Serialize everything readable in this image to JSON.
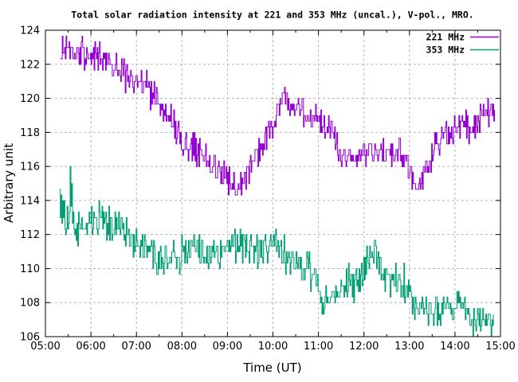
{
  "title": "Total solar radiation intensity at 221 and 353 MHz (uncal.), V-pol., MRO.",
  "axes": {
    "x": {
      "label": "Time (UT)",
      "min_hour": 5,
      "max_hour": 15,
      "major_tick_hours": 1,
      "minor_tick_hours": 0.5,
      "tick_labels": [
        "05:00",
        "06:00",
        "07:00",
        "08:00",
        "09:00",
        "10:00",
        "11:00",
        "12:00",
        "13:00",
        "14:00",
        "15:00"
      ]
    },
    "y": {
      "label": "Arbitrary unit",
      "min": 106,
      "max": 124,
      "tick_step": 2,
      "tick_labels": [
        "106",
        "108",
        "110",
        "112",
        "114",
        "116",
        "118",
        "120",
        "122",
        "124"
      ]
    }
  },
  "legend": {
    "position": "top-right-inside",
    "entries": [
      {
        "label": "221 MHz",
        "color": "#9400d3"
      },
      {
        "label": "353 MHz",
        "color": "#009e73"
      }
    ]
  },
  "colors": {
    "background": "#ffffff",
    "frame": "#000000",
    "grid": "#b5b5b5",
    "series_221": "#9400d3",
    "series_353": "#009e73"
  },
  "chart_data": {
    "type": "line",
    "style": "steps",
    "title": "Total solar radiation intensity at 221 and 353 MHz (uncal.), V-pol., MRO.",
    "xlabel": "Time (UT)",
    "ylabel": "Arbitrary unit",
    "xlim_hours": [
      5,
      15
    ],
    "ylim": [
      106,
      124
    ],
    "grid": true,
    "legend_position": "top-right",
    "sample_minutes": 1,
    "quantize_step": 0.3333,
    "series": [
      {
        "name": "221 MHz",
        "color": "#9400d3",
        "start_hour": 5.32,
        "end_hour": 14.87,
        "noise_amplitude": 1.1,
        "seed": 20210221,
        "trend": [
          [
            5.32,
            123.0
          ],
          [
            5.55,
            122.8
          ],
          [
            5.85,
            122.6
          ],
          [
            6.1,
            122.4
          ],
          [
            6.35,
            122.2
          ],
          [
            6.6,
            121.7
          ],
          [
            6.8,
            121.2
          ],
          [
            7.0,
            121.2
          ],
          [
            7.15,
            120.8
          ],
          [
            7.35,
            120.2
          ],
          [
            7.55,
            119.5
          ],
          [
            7.75,
            118.8
          ],
          [
            7.95,
            117.6
          ],
          [
            8.15,
            117.2
          ],
          [
            8.35,
            116.8
          ],
          [
            8.6,
            116.2
          ],
          [
            8.85,
            115.9
          ],
          [
            9.05,
            115.1
          ],
          [
            9.2,
            114.7
          ],
          [
            9.35,
            115.3
          ],
          [
            9.5,
            115.9
          ],
          [
            9.65,
            116.8
          ],
          [
            9.8,
            117.7
          ],
          [
            10.0,
            118.3
          ],
          [
            10.1,
            119.2
          ],
          [
            10.25,
            120.6
          ],
          [
            10.4,
            119.8
          ],
          [
            10.6,
            119.4
          ],
          [
            10.75,
            119.0
          ],
          [
            10.95,
            118.8
          ],
          [
            11.15,
            118.4
          ],
          [
            11.35,
            117.6
          ],
          [
            11.55,
            116.8
          ],
          [
            11.75,
            116.4
          ],
          [
            11.95,
            116.5
          ],
          [
            12.1,
            116.9
          ],
          [
            12.3,
            116.8
          ],
          [
            12.5,
            116.7
          ],
          [
            12.7,
            116.7
          ],
          [
            12.9,
            116.4
          ],
          [
            13.05,
            115.4
          ],
          [
            13.15,
            114.6
          ],
          [
            13.25,
            114.7
          ],
          [
            13.38,
            116.0
          ],
          [
            13.55,
            117.1
          ],
          [
            13.75,
            117.7
          ],
          [
            13.95,
            117.9
          ],
          [
            14.1,
            118.7
          ],
          [
            14.25,
            118.3
          ],
          [
            14.4,
            118.1
          ],
          [
            14.55,
            118.9
          ],
          [
            14.7,
            119.2
          ],
          [
            14.87,
            119.2
          ]
        ]
      },
      {
        "name": "353 MHz",
        "color": "#009e73",
        "start_hour": 5.31,
        "end_hour": 14.85,
        "noise_amplitude": 1.3,
        "seed": 20210353,
        "trend": [
          [
            5.31,
            113.9
          ],
          [
            5.42,
            113.2
          ],
          [
            5.5,
            112.8
          ],
          [
            5.54,
            114.9
          ],
          [
            5.6,
            112.7
          ],
          [
            5.8,
            112.5
          ],
          [
            6.0,
            112.7
          ],
          [
            6.2,
            112.9
          ],
          [
            6.45,
            112.5
          ],
          [
            6.7,
            112.3
          ],
          [
            6.95,
            111.7
          ],
          [
            7.15,
            111.2
          ],
          [
            7.4,
            110.9
          ],
          [
            7.65,
            110.7
          ],
          [
            7.85,
            110.8
          ],
          [
            8.05,
            111.2
          ],
          [
            8.25,
            111.4
          ],
          [
            8.45,
            110.9
          ],
          [
            8.7,
            111.0
          ],
          [
            8.95,
            111.2
          ],
          [
            9.15,
            111.5
          ],
          [
            9.35,
            111.4
          ],
          [
            9.55,
            111.1
          ],
          [
            9.75,
            111.2
          ],
          [
            9.95,
            111.4
          ],
          [
            10.15,
            111.3
          ],
          [
            10.35,
            110.6
          ],
          [
            10.55,
            109.9
          ],
          [
            10.75,
            110.2
          ],
          [
            10.95,
            109.2
          ],
          [
            11.1,
            107.8
          ],
          [
            11.25,
            107.9
          ],
          [
            11.45,
            108.6
          ],
          [
            11.65,
            109.1
          ],
          [
            11.85,
            108.9
          ],
          [
            12.0,
            109.9
          ],
          [
            12.1,
            110.9
          ],
          [
            12.25,
            110.6
          ],
          [
            12.45,
            109.8
          ],
          [
            12.65,
            109.3
          ],
          [
            12.85,
            109.1
          ],
          [
            13.0,
            108.5
          ],
          [
            13.15,
            107.7
          ],
          [
            13.35,
            107.5
          ],
          [
            13.6,
            107.6
          ],
          [
            13.85,
            107.5
          ],
          [
            14.05,
            107.9
          ],
          [
            14.2,
            107.7
          ],
          [
            14.35,
            107.3
          ],
          [
            14.55,
            107.2
          ],
          [
            14.72,
            106.9
          ],
          [
            14.85,
            107.1
          ]
        ]
      }
    ]
  }
}
